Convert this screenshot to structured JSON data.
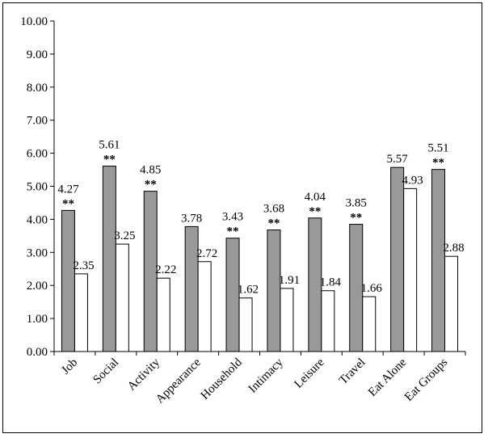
{
  "chart_data": {
    "type": "bar",
    "categories": [
      "Job",
      "Social",
      "Activity",
      "Appearance",
      "Household",
      "Intimacy",
      "Leisure",
      "Travel",
      "Eat Alone",
      "Eat Groups"
    ],
    "series": [
      {
        "values": [
          4.27,
          5.61,
          4.85,
          3.78,
          3.43,
          3.68,
          4.04,
          3.85,
          5.57,
          5.51
        ],
        "value_labels": [
          "4.27",
          "5.61",
          "4.85",
          "3.78",
          "3.43",
          "3.68",
          "4.04",
          "3.85",
          "5.57",
          "5.51"
        ],
        "color": "#999999"
      },
      {
        "values": [
          2.35,
          3.25,
          2.22,
          2.72,
          1.62,
          1.91,
          1.84,
          1.66,
          4.93,
          2.88
        ],
        "value_labels": [
          "2.35",
          "3.25",
          "2.22",
          "2.72",
          "1.62",
          "1.91",
          "1.84",
          "1.66",
          "4.93",
          "2.88"
        ],
        "color": "#ffffff"
      }
    ],
    "significance": [
      "**",
      "**",
      "**",
      "",
      "**",
      "**",
      "**",
      "**",
      "",
      "**"
    ],
    "ylim": [
      0,
      10
    ],
    "yticks": [
      "0.00",
      "1.00",
      "2.00",
      "3.00",
      "4.00",
      "5.00",
      "6.00",
      "7.00",
      "8.00",
      "9.00",
      "10.00"
    ],
    "grid": false,
    "legend": "none",
    "title": "",
    "xlabel": "",
    "ylabel": ""
  }
}
